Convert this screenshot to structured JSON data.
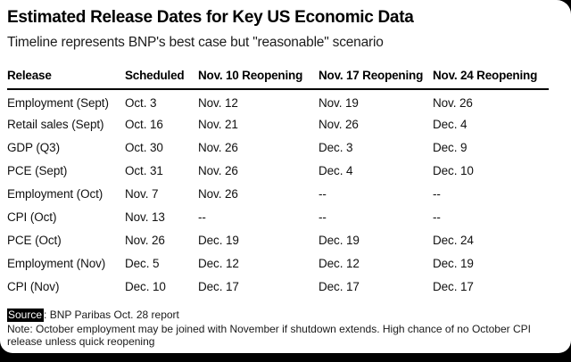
{
  "header": {
    "title": "Estimated Release Dates for Key US Economic Data",
    "subtitle": "Timeline represents BNP's best case but \"reasonable\" scenario"
  },
  "chart_data": {
    "type": "table",
    "title": "Estimated Release Dates for Key US Economic Data",
    "subtitle": "Timeline represents BNP's best case but \"reasonable\" scenario",
    "columns": [
      "Release",
      "Scheduled",
      "Nov. 10 Reopening",
      "Nov. 17 Reopening",
      "Nov. 24 Reopening"
    ],
    "rows": [
      {
        "release": "Employment (Sept)",
        "scheduled": "Oct. 3",
        "nov10": "Nov. 12",
        "nov17": "Nov. 19",
        "nov24": "Nov. 26"
      },
      {
        "release": "Retail sales (Sept)",
        "scheduled": "Oct. 16",
        "nov10": "Nov. 21",
        "nov17": "Nov. 26",
        "nov24": "Dec. 4"
      },
      {
        "release": "GDP (Q3)",
        "scheduled": "Oct. 30",
        "nov10": "Nov. 26",
        "nov17": "Dec. 3",
        "nov24": "Dec. 9"
      },
      {
        "release": "PCE (Sept)",
        "scheduled": "Oct. 31",
        "nov10": "Nov. 26",
        "nov17": "Dec. 4",
        "nov24": "Dec. 10"
      },
      {
        "release": "Employment (Oct)",
        "scheduled": "Nov. 7",
        "nov10": "Nov. 26",
        "nov17": "--",
        "nov24": "--"
      },
      {
        "release": "CPI (Oct)",
        "scheduled": "Nov. 13",
        "nov10": "--",
        "nov17": "--",
        "nov24": "--"
      },
      {
        "release": "PCE (Oct)",
        "scheduled": "Nov. 26",
        "nov10": "Dec. 19",
        "nov17": "Dec. 19",
        "nov24": "Dec. 24"
      },
      {
        "release": "Employment (Nov)",
        "scheduled": "Dec. 5",
        "nov10": "Dec. 12",
        "nov17": "Dec. 12",
        "nov24": "Dec. 19"
      },
      {
        "release": "CPI (Nov)",
        "scheduled": "Dec. 10",
        "nov10": "Dec. 17",
        "nov17": "Dec. 17",
        "nov24": "Dec. 17"
      }
    ]
  },
  "footer": {
    "source_label": "Source",
    "source_text": ": BNP Paribas Oct. 28 report",
    "note": "Note: October employment may be joined with November if shutdown extends. High chance of no October CPI release unless quick reopening"
  },
  "colors": {
    "text": "#000000",
    "card_background": "#ffffff",
    "frame_background": "#000000",
    "source_tag_background": "#000000",
    "source_tag_text": "#ffffff"
  }
}
